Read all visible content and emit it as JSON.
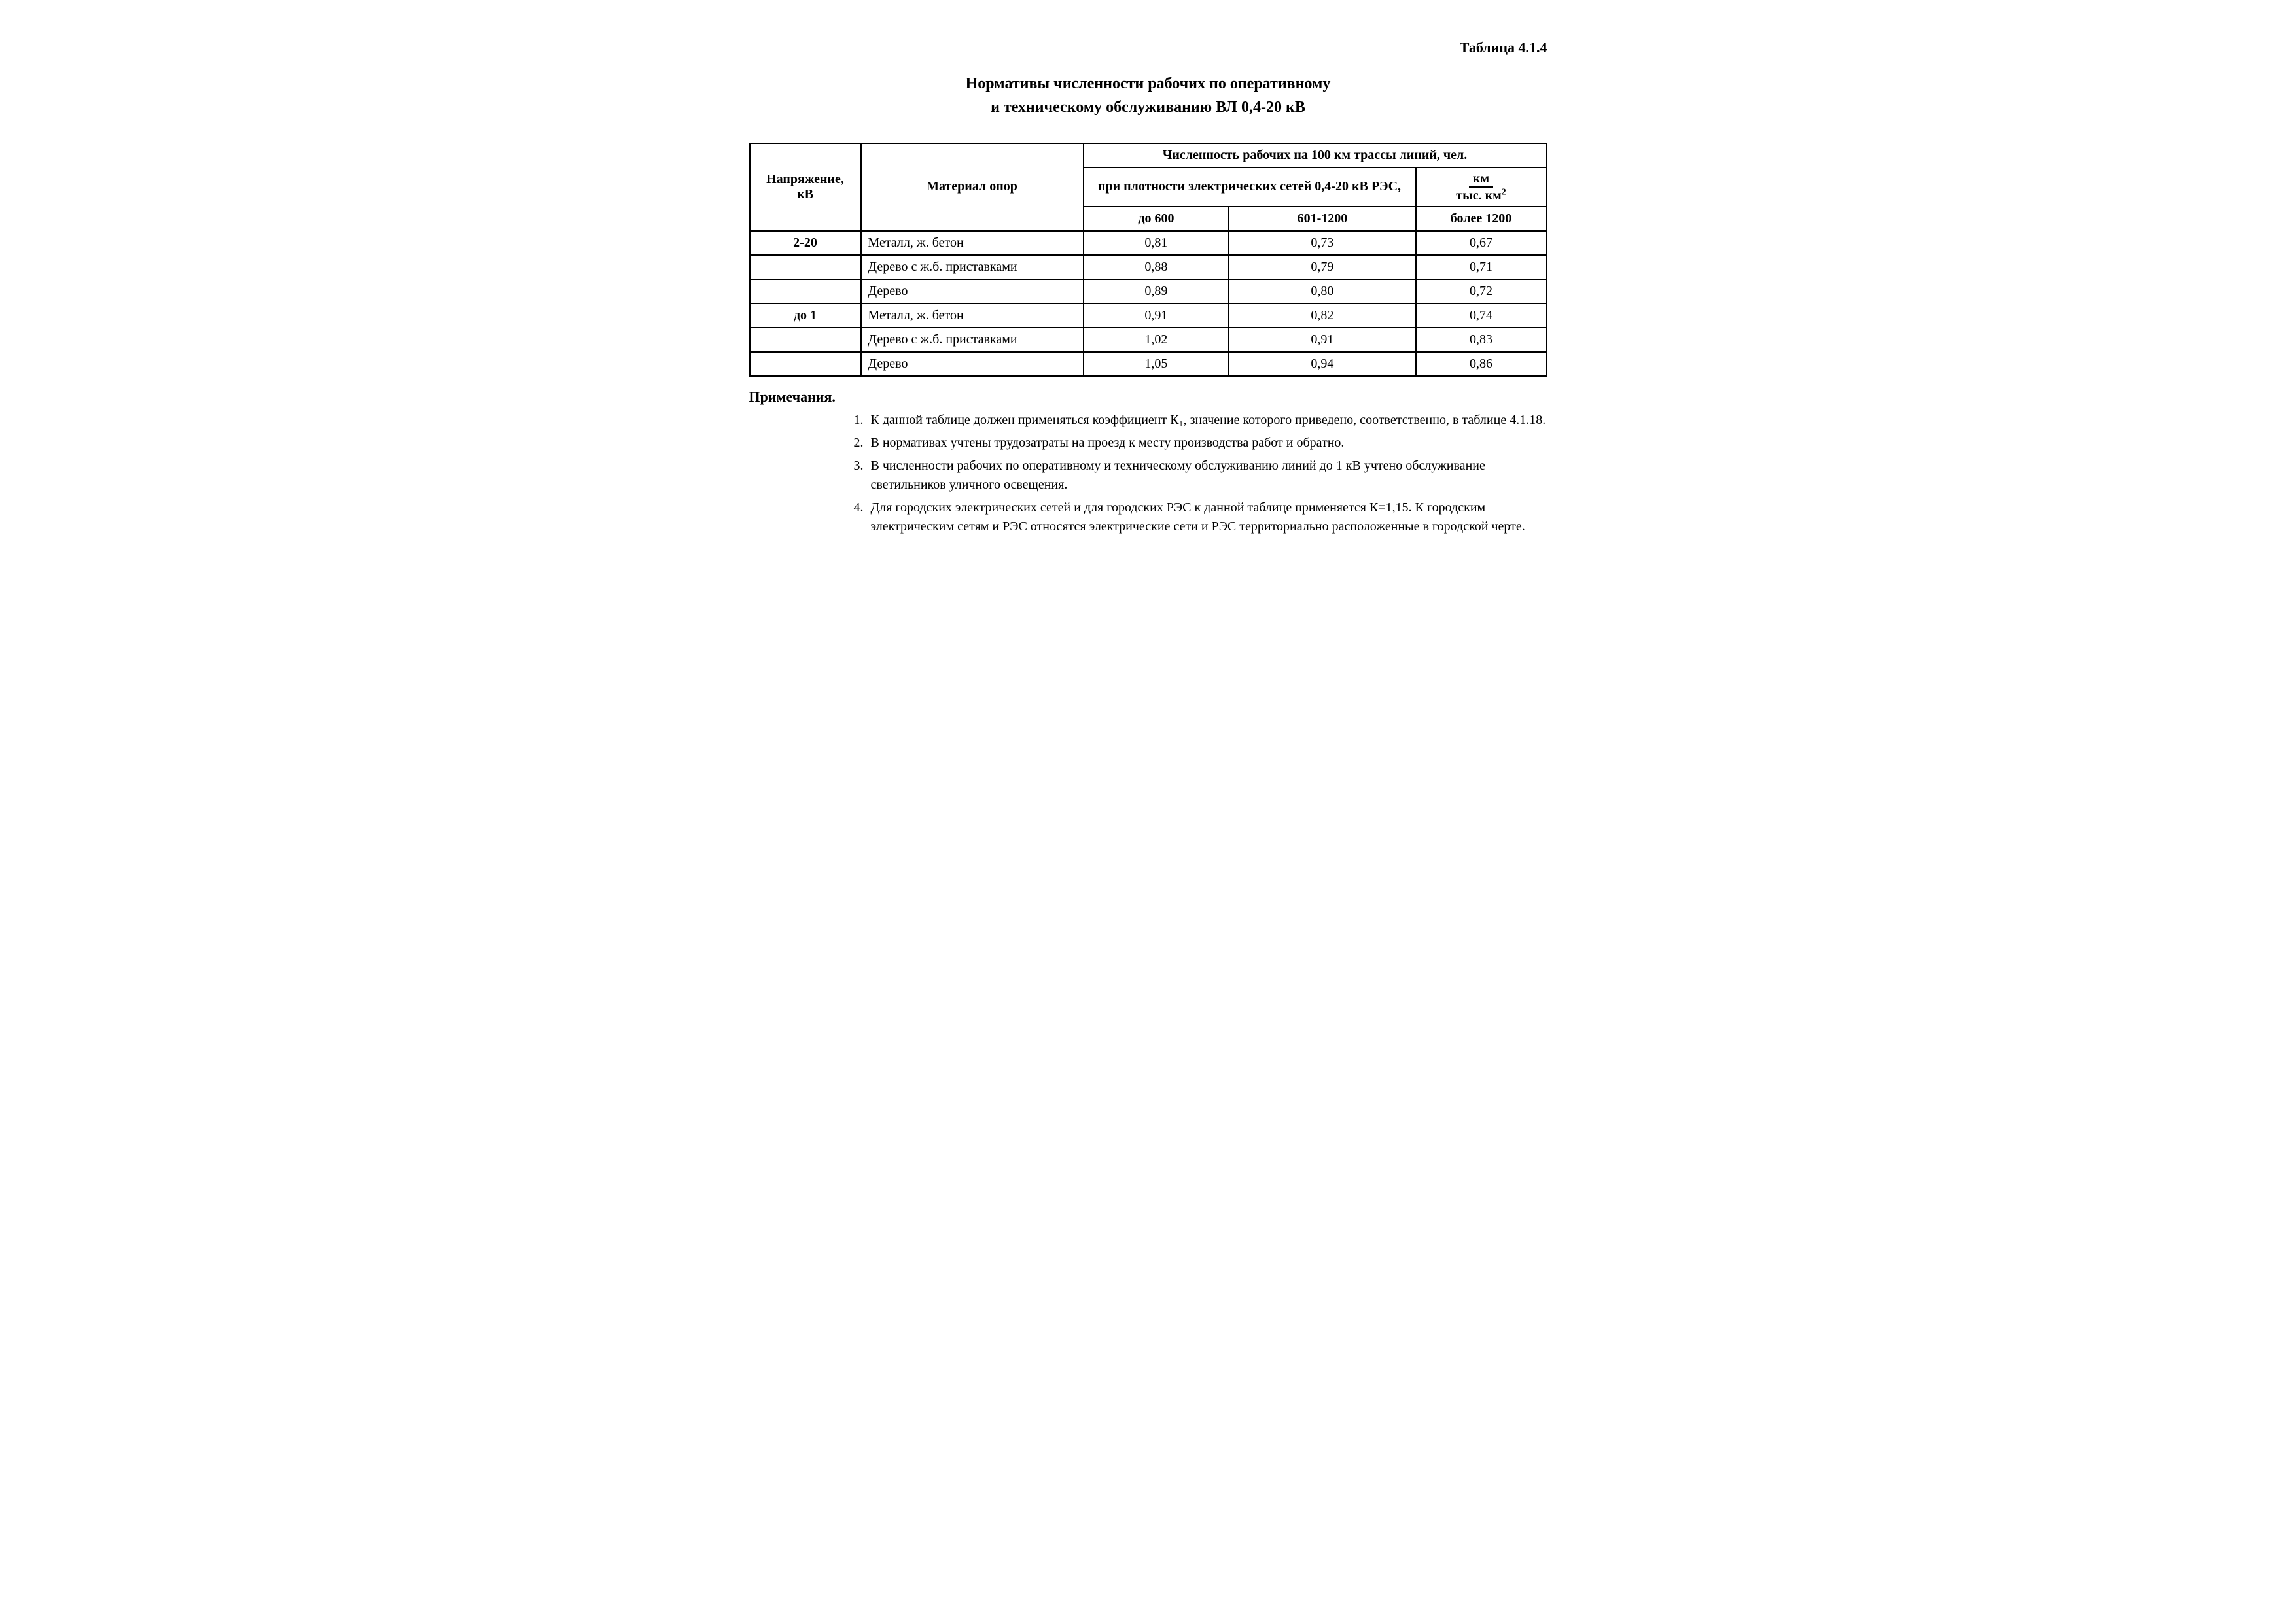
{
  "table_label": "Таблица 4.1.4",
  "title_line1": "Нормативы численности рабочих по оперативному",
  "title_line2": "и техническому обслуживанию ВЛ 0,4-20 кВ",
  "headers": {
    "col_voltage": "Напряжение, кВ",
    "col_material": "Материал опор",
    "col_count": "Численность рабочих на 100 км трассы линий, чел.",
    "col_density": "при плотности электрических сетей 0,4-20 кВ РЭС,",
    "unit_top": "км",
    "unit_bot": "тыс. км",
    "sub1": "до 600",
    "sub2": "601-1200",
    "sub3": "более 1200"
  },
  "rows": [
    {
      "voltage": "2-20",
      "material": "Металл, ж. бетон",
      "v1": "0,81",
      "v2": "0,73",
      "v3": "0,67"
    },
    {
      "voltage": "",
      "material": "Дерево с ж.б. приставками",
      "v1": "0,88",
      "v2": "0,79",
      "v3": "0,71"
    },
    {
      "voltage": "",
      "material": "Дерево",
      "v1": "0,89",
      "v2": "0,80",
      "v3": "0,72"
    },
    {
      "voltage": "до 1",
      "material": "Металл, ж. бетон",
      "v1": "0,91",
      "v2": "0,82",
      "v3": "0,74"
    },
    {
      "voltage": "",
      "material": "Дерево с ж.б. приставками",
      "v1": "1,02",
      "v2": "0,91",
      "v3": "0,83"
    },
    {
      "voltage": "",
      "material": "Дерево",
      "v1": "1,05",
      "v2": "0,94",
      "v3": "0,86"
    }
  ],
  "notes_heading": "Примечания.",
  "notes": [
    "К данной таблице должен применяться коэффициент К₁, значение которого приведено, соответственно, в таблице 4.1.18.",
    "В нормативах учтены трудозатраты на проезд к месту производства работ и обратно.",
    "В численности рабочих по оперативному и техническому обслуживанию линий до 1 кВ учтено обслуживание светильников уличного освещения.",
    "Для городских электрических сетей и для городских РЭС к данной таблице применяется К=1,15. К городским электрическим сетям и РЭС относятся электрические сети и РЭС территориально расположенные в городской черте."
  ]
}
